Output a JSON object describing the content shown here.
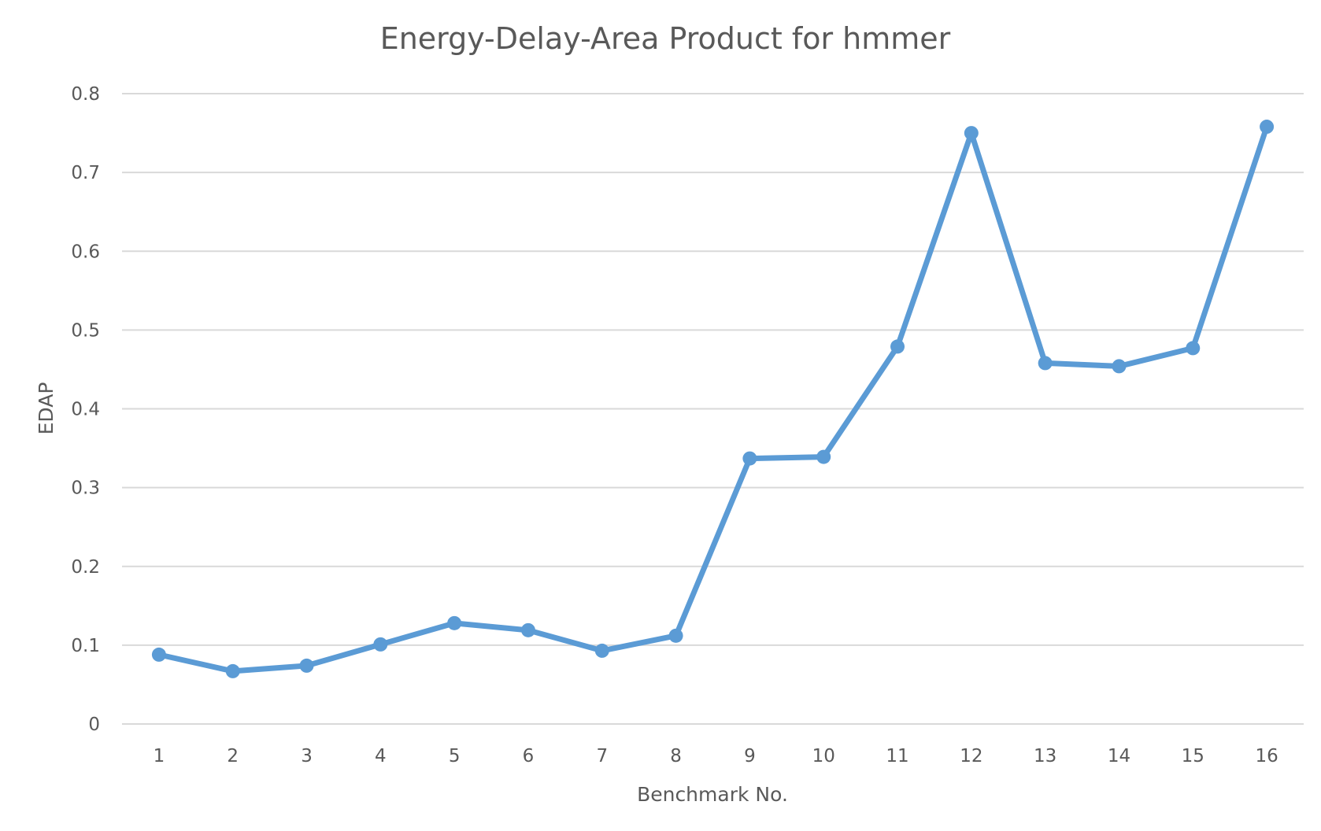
{
  "chart_data": {
    "type": "line",
    "title": "Energy-Delay-Area Product for hmmer",
    "xlabel": "Benchmark No.",
    "ylabel": "EDAP",
    "categories": [
      "1",
      "2",
      "3",
      "4",
      "5",
      "6",
      "7",
      "8",
      "9",
      "10",
      "11",
      "12",
      "13",
      "14",
      "15",
      "16"
    ],
    "series": [
      {
        "values": [
          0.088,
          0.067,
          0.074,
          0.101,
          0.128,
          0.119,
          0.093,
          0.112,
          0.337,
          0.339,
          0.479,
          0.75,
          0.458,
          0.454,
          0.477,
          0.758
        ],
        "color": "#5b9bd5"
      }
    ],
    "ylim": [
      0,
      0.8
    ],
    "yticks": [
      "0",
      "0.1",
      "0.2",
      "0.3",
      "0.4",
      "0.5",
      "0.6",
      "0.7",
      "0.8"
    ],
    "grid": true,
    "gridline_color": "#d9d9d9",
    "text_color": "#595959",
    "legend": "none"
  }
}
